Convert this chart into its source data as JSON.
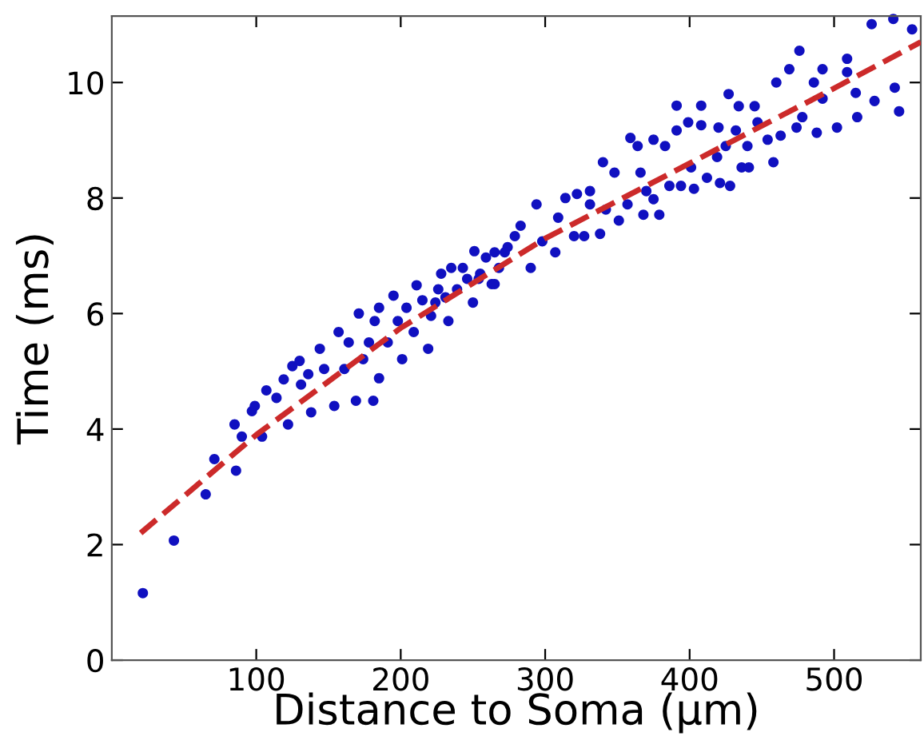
{
  "chart_data": {
    "type": "scatter",
    "xlabel": "Distance to Soma (µm)",
    "ylabel": "Time (ms)",
    "xlim": [
      0,
      560
    ],
    "ylim": [
      0,
      11.15
    ],
    "xticks": [
      100,
      200,
      300,
      400,
      500
    ],
    "yticks": [
      0,
      2,
      4,
      6,
      8,
      10
    ],
    "grid": false,
    "series": [
      {
        "color": "#1010c0",
        "marker": "circle",
        "x": [
          21.5,
          43,
          65,
          71,
          86,
          85,
          90,
          97,
          104,
          99,
          107,
          114,
          122,
          119,
          125,
          130,
          131,
          138,
          136,
          144,
          147,
          154,
          157,
          161,
          164,
          169,
          171,
          174,
          178,
          181,
          182,
          185,
          185,
          191,
          195,
          198,
          201,
          204,
          209,
          211,
          215,
          219,
          221,
          224,
          226,
          228,
          231,
          233,
          235,
          239,
          243,
          246,
          250,
          251,
          255,
          259,
          263,
          265,
          268,
          274,
          254,
          265,
          272,
          279,
          283,
          290,
          294,
          298,
          307,
          309,
          314,
          320,
          322,
          327,
          331,
          331,
          338,
          340,
          342,
          348,
          351,
          357,
          359,
          364,
          366,
          368,
          370,
          375,
          375,
          379,
          383,
          386,
          391,
          391,
          394,
          399,
          401,
          403,
          408,
          408,
          412,
          419,
          420,
          421,
          425,
          427,
          428,
          432,
          434,
          436,
          440,
          441,
          445,
          447,
          454,
          458,
          460,
          463,
          469,
          474,
          476,
          478,
          486,
          488,
          492,
          492,
          502,
          509,
          509,
          515,
          516,
          526,
          528,
          541,
          542,
          545,
          554
        ],
        "values": [
          1.16,
          2.07,
          2.87,
          3.48,
          3.28,
          4.08,
          3.87,
          4.31,
          3.87,
          4.4,
          4.67,
          4.54,
          4.08,
          4.86,
          5.09,
          5.18,
          4.77,
          4.29,
          4.95,
          5.39,
          5.04,
          4.4,
          5.68,
          5.04,
          5.5,
          4.49,
          6.0,
          5.21,
          5.5,
          4.49,
          5.87,
          4.88,
          6.1,
          5.5,
          6.31,
          5.87,
          5.21,
          6.1,
          5.68,
          6.49,
          6.23,
          5.39,
          5.96,
          6.19,
          6.42,
          6.69,
          6.28,
          5.87,
          6.79,
          6.42,
          6.79,
          6.6,
          6.19,
          7.08,
          6.69,
          6.97,
          6.51,
          7.06,
          6.79,
          7.15,
          6.6,
          6.51,
          7.06,
          7.34,
          7.52,
          6.79,
          7.89,
          7.25,
          7.06,
          7.66,
          8.0,
          7.34,
          8.07,
          7.34,
          8.12,
          7.89,
          7.38,
          8.62,
          7.8,
          8.44,
          7.61,
          7.89,
          9.04,
          8.9,
          8.44,
          7.71,
          8.12,
          9.01,
          7.98,
          7.71,
          8.9,
          8.21,
          9.6,
          9.17,
          8.21,
          9.31,
          8.53,
          8.16,
          9.6,
          9.26,
          8.35,
          8.71,
          9.22,
          8.26,
          8.9,
          9.8,
          8.21,
          9.17,
          9.59,
          8.53,
          8.9,
          8.53,
          9.59,
          9.31,
          9.01,
          8.62,
          10.0,
          9.08,
          10.23,
          9.22,
          10.55,
          9.4,
          10.0,
          9.13,
          10.23,
          9.72,
          9.22,
          10.41,
          10.18,
          9.82,
          9.4,
          11.01,
          9.68,
          11.1,
          9.91,
          9.5,
          10.92
        ]
      },
      {
        "type": "line",
        "color": "#cc2a2a",
        "line_style": "dashed",
        "marker": "none",
        "x": [
          20,
          100,
          200,
          300,
          400,
          500,
          560
        ],
        "values": [
          2.2,
          3.9,
          5.75,
          7.3,
          8.6,
          9.9,
          10.7
        ]
      }
    ]
  }
}
